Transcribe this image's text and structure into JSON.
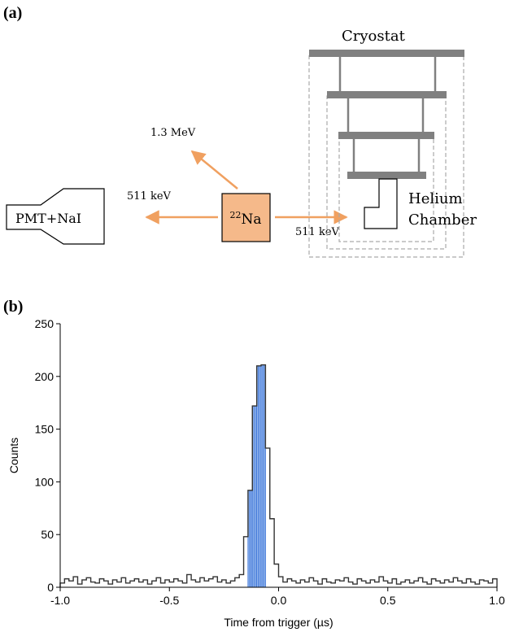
{
  "panel_a": {
    "label": "(a)",
    "source_mass_number": "22",
    "source_element": "Na",
    "detector_label": "PMT+NaI",
    "cryostat_label": "Cryostat",
    "chamber_label_line1": "Helium",
    "chamber_label_line2": "Chamber",
    "energy_up": "1.3 MeV",
    "energy_left": "511 keV",
    "energy_right": "511 keV",
    "colors": {
      "source_fill": "#f5b98a",
      "arrow": "#f0a060",
      "cryostat_plate": "#808080",
      "dashed": "#aaaaaa"
    }
  },
  "panel_b": {
    "label": "(b)",
    "chart_data": {
      "type": "histogram",
      "xlabel": "Time from trigger (µs)",
      "ylabel": "Counts",
      "xlim": [
        -1.0,
        1.0
      ],
      "ylim": [
        0,
        250
      ],
      "xticks": [
        "-1.0",
        "-0.5",
        "0.0",
        "0.5",
        "1.0"
      ],
      "yticks": [
        "0",
        "50",
        "100",
        "150",
        "200",
        "250"
      ],
      "bin_width": 0.02,
      "bin_start": -1.0,
      "counts": [
        4,
        8,
        6,
        10,
        3,
        7,
        9,
        5,
        4,
        8,
        6,
        3,
        7,
        5,
        9,
        4,
        6,
        8,
        5,
        7,
        3,
        6,
        9,
        4,
        7,
        5,
        8,
        6,
        4,
        12,
        7,
        5,
        9,
        6,
        8,
        10,
        5,
        7,
        4,
        6,
        9,
        12,
        48,
        92,
        172,
        210,
        211,
        132,
        65,
        22,
        10,
        5,
        8,
        6,
        4,
        7,
        5,
        9,
        6,
        3,
        8,
        5,
        4,
        7,
        6,
        9,
        5,
        3,
        8,
        6,
        4,
        7,
        5,
        10,
        6,
        4,
        8,
        3,
        5,
        7,
        4,
        6,
        9,
        5,
        3,
        8,
        6,
        4,
        7,
        5,
        9,
        6,
        4,
        8,
        5,
        3,
        7,
        6,
        4,
        8
      ],
      "highlight_bins": [
        43,
        44,
        45,
        46
      ],
      "colors": {
        "hist_line": "#333333",
        "highlight_fill": "#b9d3f5",
        "highlight_line": "#3a72d8"
      }
    }
  }
}
